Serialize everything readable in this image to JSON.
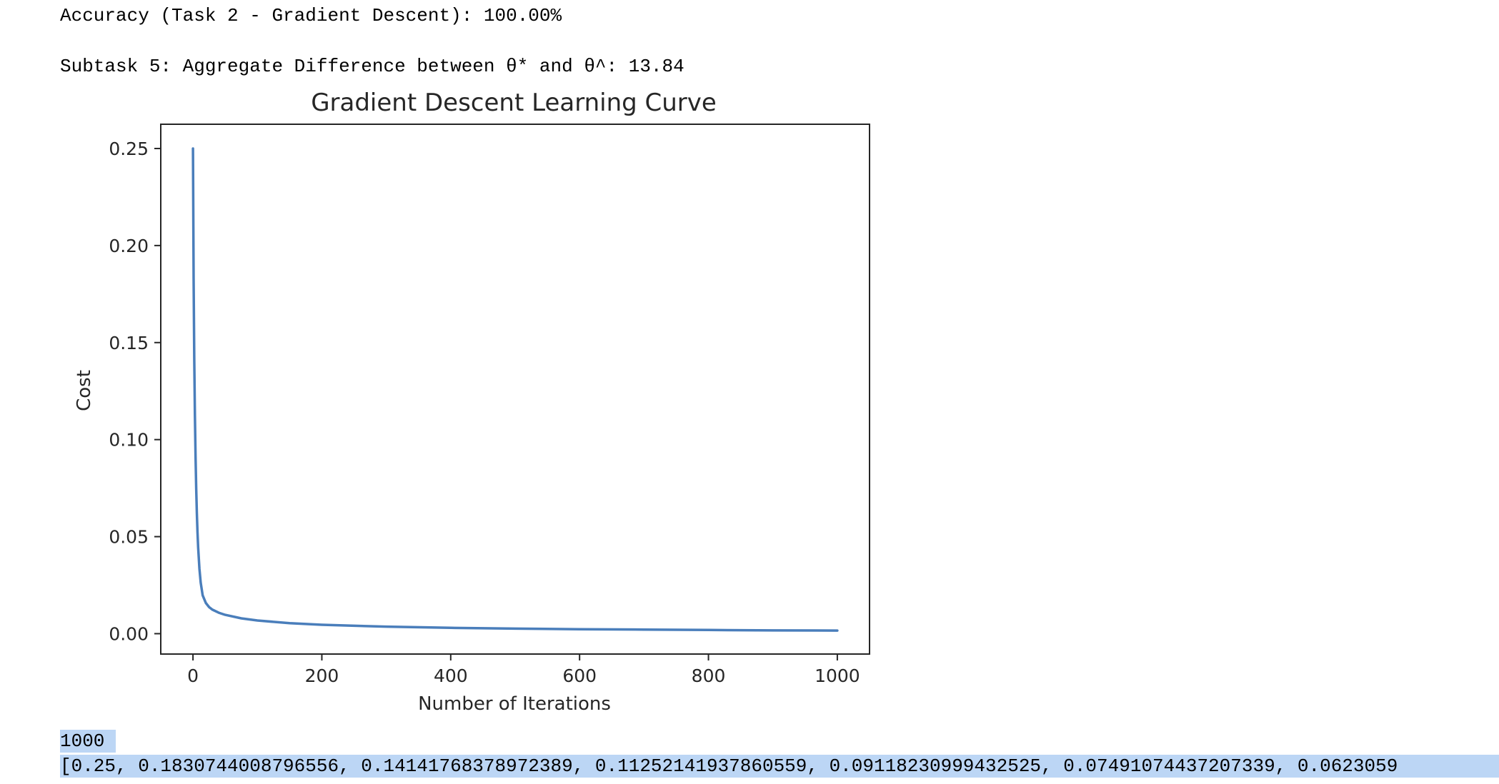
{
  "output": {
    "accuracy_line": "Accuracy (Task 2 - Gradient Descent): 100.00%",
    "subtask_line": "Subtask 5: Aggregate Difference between θ* and θ^: 13.84",
    "iteration_count": "1000",
    "cost_list_line": "[0.25, 0.183074400879655​6, 0.14141768378972389, 0.11252141937860559, 0.09118230999432525, 0.07491074437207339, 0.0623059"
  },
  "colors": {
    "line": "#4a7ebb",
    "axes": "#262626",
    "selection": "#bcd6f5"
  },
  "chart_data": {
    "type": "line",
    "title": "Gradient Descent Learning Curve",
    "xlabel": "Number of Iterations",
    "ylabel": "Cost",
    "xlim": [
      -50,
      1050
    ],
    "ylim": [
      -0.0105,
      0.2625
    ],
    "xticks": [
      0,
      200,
      400,
      600,
      800,
      1000
    ],
    "xtick_labels": [
      "0",
      "200",
      "400",
      "600",
      "800",
      "1000"
    ],
    "yticks": [
      0,
      0.05,
      0.1,
      0.15,
      0.2,
      0.25
    ],
    "ytick_labels": [
      "0.00",
      "0.05",
      "0.10",
      "0.15",
      "0.20",
      "0.25"
    ],
    "grid": false,
    "series": [
      {
        "x": [
          0,
          1,
          2,
          3,
          4,
          5,
          6,
          7,
          8,
          10,
          12,
          15,
          20,
          25,
          30,
          40,
          50,
          75,
          100,
          150,
          200,
          300,
          400,
          500,
          600,
          700,
          800,
          900,
          1000
        ],
        "y": [
          0.25,
          0.183,
          0.1414,
          0.1125,
          0.0912,
          0.0749,
          0.0623,
          0.0524,
          0.0446,
          0.0335,
          0.0263,
          0.0198,
          0.0158,
          0.0137,
          0.0124,
          0.0108,
          0.0097,
          0.0079,
          0.0068,
          0.0054,
          0.0046,
          0.0036,
          0.003,
          0.0026,
          0.0023,
          0.0021,
          0.0019,
          0.0017,
          0.0016
        ]
      }
    ]
  }
}
